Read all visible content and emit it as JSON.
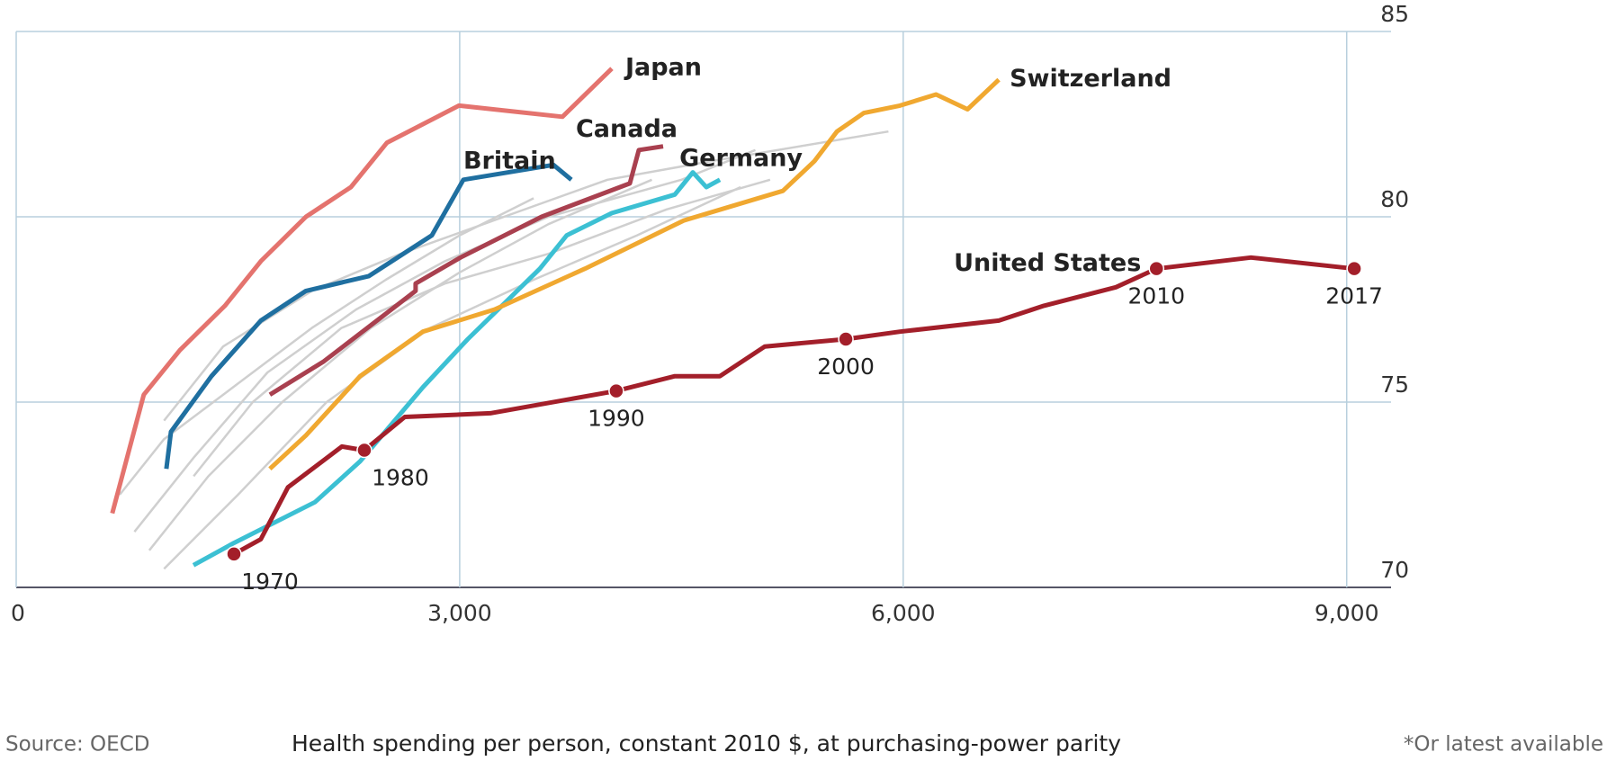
{
  "chart_data": {
    "type": "line",
    "x_label": "Health spending per person, constant 2010 $, at purchasing-power parity",
    "source": "Source: OECD",
    "note": "*Or latest available",
    "xlim": [
      0,
      9300
    ],
    "ylim": [
      70,
      85
    ],
    "xticks": [
      0,
      {
        "value": 3000,
        "label": "3,000"
      },
      {
        "value": 6000,
        "label": "6,000"
      },
      {
        "value": 9000,
        "label": "9,000"
      }
    ],
    "yticks": [
      70,
      75,
      80,
      85
    ],
    "grid": true,
    "series": [
      {
        "color": "#cfcfcf",
        "x": [
          700,
          1000,
          1500,
          2000,
          2500,
          3000,
          3500
        ],
        "values": [
          72.5,
          74,
          75.5,
          77,
          78.3,
          79.5,
          80.5
        ]
      },
      {
        "color": "#cfcfcf",
        "x": [
          900,
          1300,
          1800,
          2400,
          3000,
          3600,
          4300
        ],
        "values": [
          71,
          73,
          75,
          77,
          78.5,
          79.8,
          81
        ]
      },
      {
        "color": "#cfcfcf",
        "x": [
          800,
          1200,
          1700,
          2300,
          2900,
          3600,
          4500,
          5000
        ],
        "values": [
          71.5,
          73.5,
          75.8,
          77.5,
          78.8,
          80,
          81,
          81.8
        ]
      },
      {
        "color": "#cfcfcf",
        "x": [
          1000,
          1500,
          2100,
          2800,
          3500,
          4200,
          4900
        ],
        "values": [
          70.5,
          72.5,
          75,
          77,
          78.3,
          79.5,
          80.8
        ]
      },
      {
        "color": "#cfcfcf",
        "x": [
          1000,
          1400,
          2000,
          2600,
          3300,
          4000,
          4700,
          5900
        ],
        "values": [
          74.5,
          76.5,
          78,
          79,
          80,
          81,
          81.5,
          82.3
        ]
      },
      {
        "color": "#cfcfcf",
        "x": [
          1200,
          1600,
          2200,
          2900,
          3600,
          4400,
          5100
        ],
        "values": [
          73,
          75,
          77,
          78.2,
          79,
          80.2,
          81
        ]
      },
      {
        "name": "Japan",
        "color": "#e4736e",
        "x": [
          650,
          863,
          1107,
          1412,
          1655,
          1960,
          2264,
          2508,
          2995,
          3695,
          4029
        ],
        "values": [
          72.0,
          75.2,
          76.4,
          77.6,
          78.8,
          80.0,
          80.8,
          82.0,
          83.0,
          82.7,
          84.0
        ]
      },
      {
        "name": "Britain",
        "color": "#1f6fa0",
        "x": [
          1016,
          1047,
          1321,
          1655,
          1960,
          2386,
          2812,
          3025,
          3634,
          3755
        ],
        "values": [
          73.2,
          74.2,
          75.7,
          77.2,
          78.0,
          78.4,
          79.5,
          81.0,
          81.4,
          81.0
        ]
      },
      {
        "name": "Canada",
        "color": "#a9404f",
        "x": [
          1716,
          2081,
          2702,
          2702,
          3005,
          3554,
          4151,
          4212,
          4376
        ],
        "values": [
          75.2,
          76.1,
          78.0,
          78.2,
          78.9,
          80.0,
          80.9,
          81.8,
          81.9
        ]
      },
      {
        "name": "Germany",
        "color": "#3cc0d3",
        "x": [
          1199,
          1473,
          2021,
          2326,
          2751,
          3055,
          3542,
          3724,
          4029,
          4455,
          4577,
          4668,
          4760
        ],
        "values": [
          70.6,
          71.2,
          72.3,
          73.4,
          75.4,
          76.7,
          78.6,
          79.5,
          80.1,
          80.6,
          81.2,
          80.8,
          81.0
        ]
      },
      {
        "name": "Switzerland",
        "color": "#f0a830",
        "x": [
          1716,
          1960,
          2326,
          2751,
          3237,
          3847,
          4516,
          5186,
          5399,
          5552,
          5734,
          5978,
          6222,
          6435,
          6647
        ],
        "values": [
          73.2,
          74.1,
          75.7,
          76.9,
          77.5,
          78.6,
          79.9,
          80.7,
          81.5,
          82.3,
          82.8,
          83.0,
          83.3,
          82.9,
          83.7
        ]
      },
      {
        "name": "United States",
        "color": "#a31f2a",
        "x": [
          1473,
          1655,
          1838,
          2203,
          2355,
          2629,
          3207,
          4059,
          4455,
          4760,
          5064,
          5612,
          5978,
          6647,
          6952,
          7439,
          7713,
          8352,
          9051
        ],
        "values": [
          70.9,
          71.3,
          72.7,
          73.8,
          73.7,
          74.6,
          74.7,
          75.3,
          75.7,
          75.7,
          76.5,
          76.7,
          76.9,
          77.2,
          77.6,
          78.1,
          78.6,
          78.9,
          78.6
        ],
        "point_labels": [
          "1970",
          null,
          null,
          null,
          "1980",
          null,
          null,
          "1990",
          null,
          null,
          null,
          "2000",
          null,
          null,
          null,
          null,
          "2010",
          null,
          "2017"
        ]
      }
    ]
  }
}
